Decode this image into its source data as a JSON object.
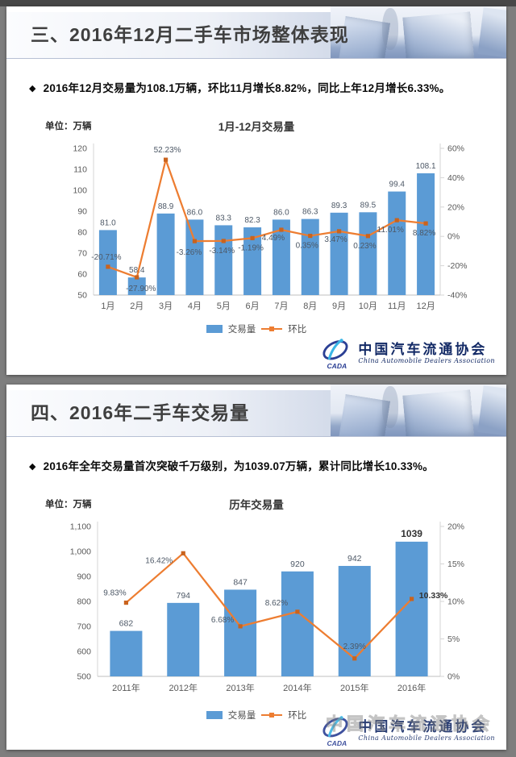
{
  "panels": [
    {
      "header": {
        "title": "三、2016年12月二手车市场整体表现"
      },
      "bullet": "2016年12月交易量为108.1万辆，环比11月增长8.82%，同比上年12月增长6.33%。"
    },
    {
      "header": {
        "title": "四、2016年二手车交易量"
      },
      "bullet": "2016年全年交易量首次突破千万级别，为1039.07万辆，累计同比增长10.33%。"
    }
  ],
  "logo": {
    "cada": "CADA",
    "cn": "中国汽车流通协会",
    "en": "China Automobile Dealers Association"
  },
  "colors": {
    "bar": "#5B9BD5",
    "line": "#ED7D31",
    "marker": "#C9631E",
    "data_label": "#4d5866",
    "axis_label": "#595959",
    "axis_line": "#d6d6d6",
    "baseline": "#bfbfbf"
  },
  "chart_data": [
    {
      "type": "bar+line",
      "title": "1月-12月交易量",
      "unit": "单位：万辆",
      "categories": [
        "1月",
        "2月",
        "3月",
        "4月",
        "5月",
        "6月",
        "7月",
        "8月",
        "9月",
        "10月",
        "11月",
        "12月"
      ],
      "series": [
        {
          "name": "交易量",
          "type": "bar",
          "axis": "left",
          "values": [
            81.0,
            58.4,
            88.9,
            86.0,
            83.3,
            82.3,
            86.0,
            86.3,
            89.3,
            89.5,
            99.4,
            108.1
          ],
          "labels": [
            "81.0",
            "58.4",
            "88.9",
            "86.0",
            "83.3",
            "82.3",
            "86.0",
            "86.3",
            "89.3",
            "89.5",
            "99.4",
            "108.1"
          ]
        },
        {
          "name": "环比",
          "type": "line",
          "axis": "right",
          "values": [
            -20.71,
            -27.9,
            52.23,
            -3.26,
            -3.14,
            -1.19,
            4.49,
            0.35,
            3.47,
            0.23,
            11.01,
            8.82
          ],
          "labels": [
            "-20.71%",
            "-27.90%",
            "52.23%",
            "-3.26%",
            "-3.14%",
            "-1.19%",
            "4.49%",
            "0.35%",
            "3.47%",
            "0.23%",
            "11.01%",
            "8.82%"
          ]
        }
      ],
      "left_axis": {
        "min": 50,
        "max": 120,
        "step": 10,
        "labels": [
          "50",
          "60",
          "70",
          "80",
          "90",
          "100",
          "110",
          "120"
        ]
      },
      "right_axis": {
        "min": -40,
        "max": 60,
        "step": 20,
        "labels": [
          "-40%",
          "-20%",
          "0%",
          "20%",
          "40%",
          "60%"
        ]
      },
      "legend": [
        "交易量",
        "环比"
      ],
      "grid": false,
      "legend_position": "bottom"
    },
    {
      "type": "bar+line",
      "title": "历年交易量",
      "unit": "单位：万辆",
      "categories": [
        "2011年",
        "2012年",
        "2013年",
        "2014年",
        "2015年",
        "2016年"
      ],
      "series": [
        {
          "name": "交易量",
          "type": "bar",
          "axis": "left",
          "values": [
            682,
            794,
            847,
            920,
            942,
            1039
          ],
          "labels": [
            "682",
            "794",
            "847",
            "920",
            "942",
            "1039"
          ]
        },
        {
          "name": "环比",
          "type": "line",
          "axis": "right",
          "values": [
            9.83,
            16.42,
            6.68,
            8.62,
            2.39,
            10.33
          ],
          "labels": [
            "9.83%",
            "16.42%",
            "6.68%",
            "8.62%",
            "2.39%",
            "10.33%"
          ]
        }
      ],
      "left_axis": {
        "min": 500,
        "max": 1100,
        "step": 100,
        "labels": [
          "500",
          "600",
          "700",
          "800",
          "900",
          "1,000",
          "1,100"
        ]
      },
      "right_axis": {
        "min": 0,
        "max": 20,
        "step": 5,
        "labels": [
          "0%",
          "5%",
          "10%",
          "15%",
          "20%"
        ]
      },
      "legend": [
        "交易量",
        "环比"
      ],
      "grid": false,
      "legend_position": "bottom"
    }
  ]
}
